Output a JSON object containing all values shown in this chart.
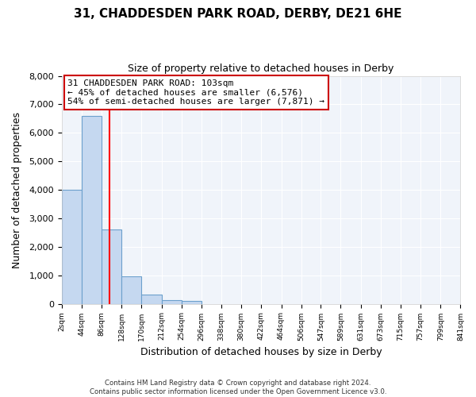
{
  "title": "31, CHADDESDEN PARK ROAD, DERBY, DE21 6HE",
  "subtitle": "Size of property relative to detached houses in Derby",
  "xlabel": "Distribution of detached houses by size in Derby",
  "ylabel": "Number of detached properties",
  "bin_edges": [
    2,
    44,
    86,
    128,
    170,
    212,
    254,
    296,
    338,
    380,
    422,
    464,
    506,
    547,
    589,
    631,
    673,
    715,
    757,
    799,
    841
  ],
  "bar_heights": [
    4000,
    6600,
    2600,
    950,
    325,
    120,
    90,
    0,
    0,
    0,
    0,
    0,
    0,
    0,
    0,
    0,
    0,
    0,
    0,
    0
  ],
  "bar_color": "#c5d8f0",
  "bar_edge_color": "#6ca0cc",
  "red_line_x": 103,
  "annotation_line1": "31 CHADDESDEN PARK ROAD: 103sqm",
  "annotation_line2": "← 45% of detached houses are smaller (6,576)",
  "annotation_line3": "54% of semi-detached houses are larger (7,871) →",
  "annotation_box_facecolor": "#ffffff",
  "annotation_box_edgecolor": "#cc0000",
  "ylim": [
    0,
    8000
  ],
  "yticks": [
    0,
    1000,
    2000,
    3000,
    4000,
    5000,
    6000,
    7000,
    8000
  ],
  "footer_line1": "Contains HM Land Registry data © Crown copyright and database right 2024.",
  "footer_line2": "Contains public sector information licensed under the Open Government Licence v3.0.",
  "bg_color": "#ffffff",
  "plot_bg_color": "#f0f4fa",
  "grid_color": "#ffffff",
  "title_fontsize": 11,
  "subtitle_fontsize": 9
}
